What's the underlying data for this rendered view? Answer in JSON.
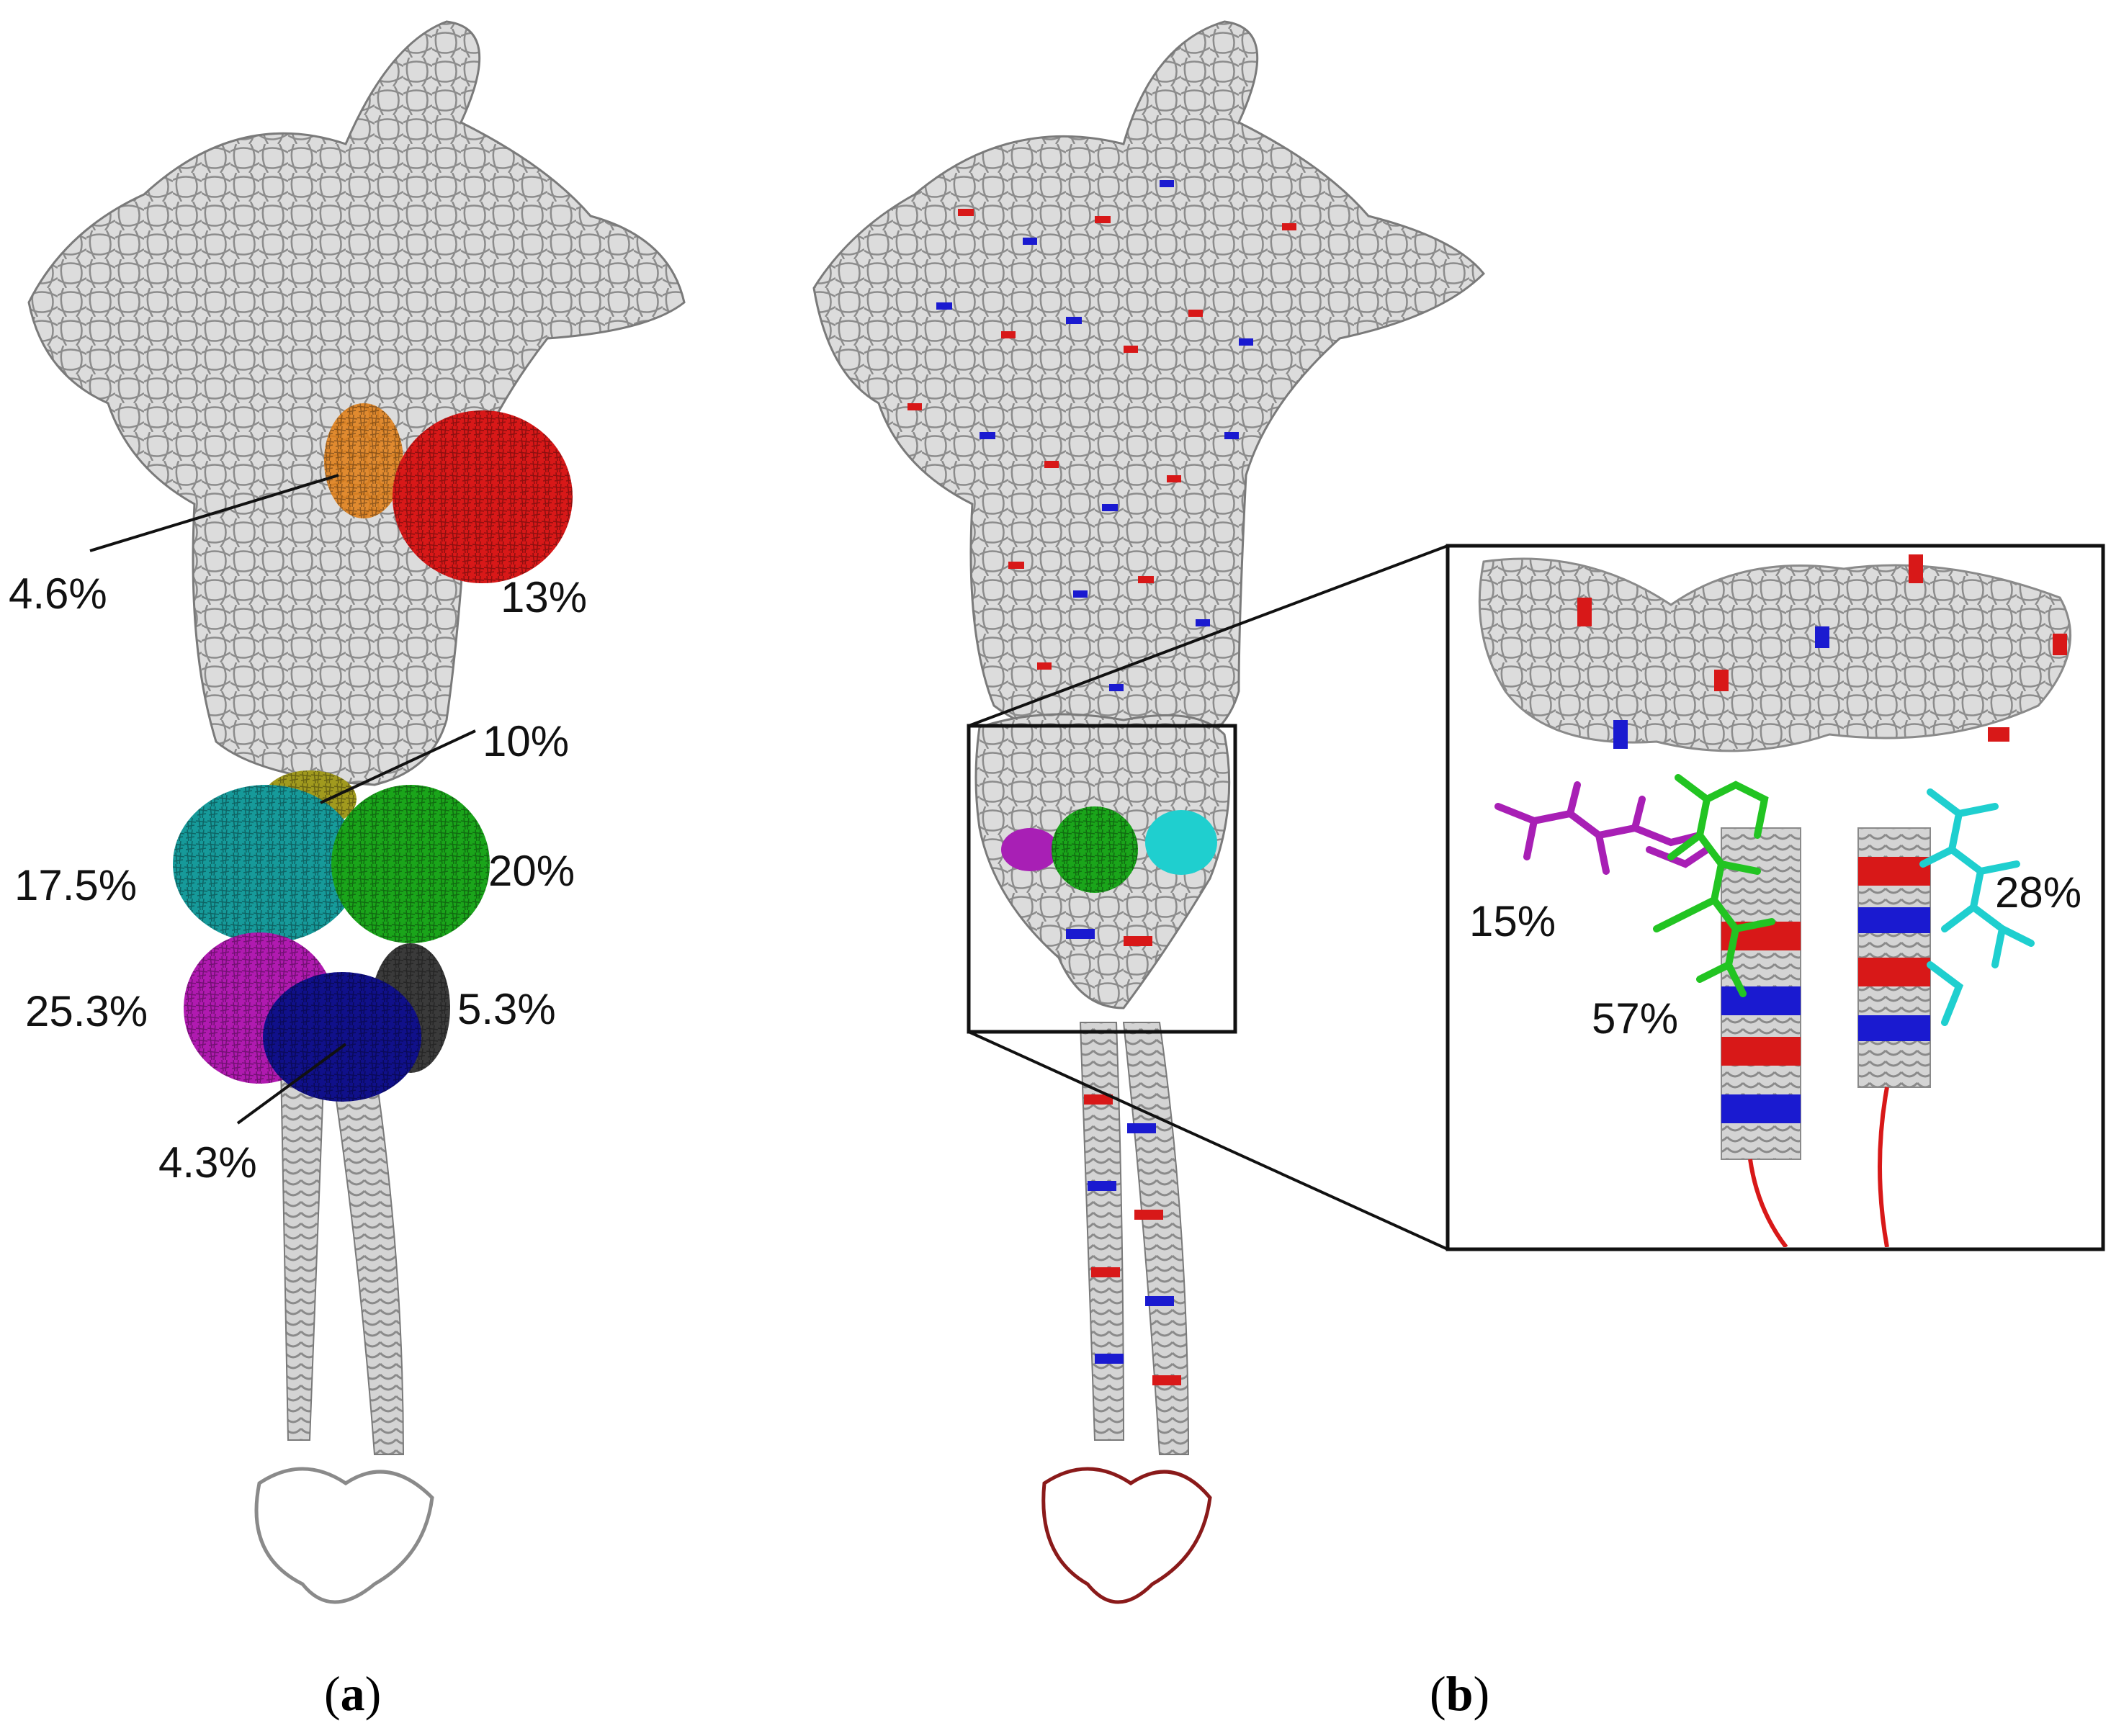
{
  "colors": {
    "protein": "#d4d4d4",
    "protein_edge": "#8a8a8a",
    "red": "#d81818",
    "blue": "#1a1ad0",
    "orange": "#e07b10",
    "olive": "#a19a1e",
    "teal": "#169a9a",
    "green": "#1aa51a",
    "magenta": "#b01ab0",
    "navy": "#10108a",
    "dark_grey": "#3a3a3a",
    "cyan": "#1fcfcf",
    "ligand_green": "#22c422",
    "ligand_magenta": "#a81fb5"
  },
  "panel_a": {
    "label_open": "(",
    "label_letter": "a",
    "label_close": ")",
    "clusters": [
      {
        "id": "orange",
        "label": "4.6%",
        "color": "orange"
      },
      {
        "id": "red",
        "label": "13%",
        "color": "red"
      },
      {
        "id": "olive",
        "label": "10%",
        "color": "olive"
      },
      {
        "id": "teal",
        "label": "17.5%",
        "color": "teal"
      },
      {
        "id": "green",
        "label": "20%",
        "color": "green"
      },
      {
        "id": "magenta",
        "label": "25.3%",
        "color": "magenta"
      },
      {
        "id": "dark",
        "label": "5.3%",
        "color": "dark_grey"
      },
      {
        "id": "navy",
        "label": "4.3%",
        "color": "navy"
      }
    ]
  },
  "panel_b": {
    "label_open": "(",
    "label_letter": "b",
    "label_close": ")",
    "inset": {
      "ligands": [
        {
          "id": "magenta",
          "label": "15%",
          "color": "ligand_magenta"
        },
        {
          "id": "green",
          "label": "57%",
          "color": "ligand_green"
        },
        {
          "id": "cyan",
          "label": "28%",
          "color": "cyan"
        }
      ]
    }
  }
}
